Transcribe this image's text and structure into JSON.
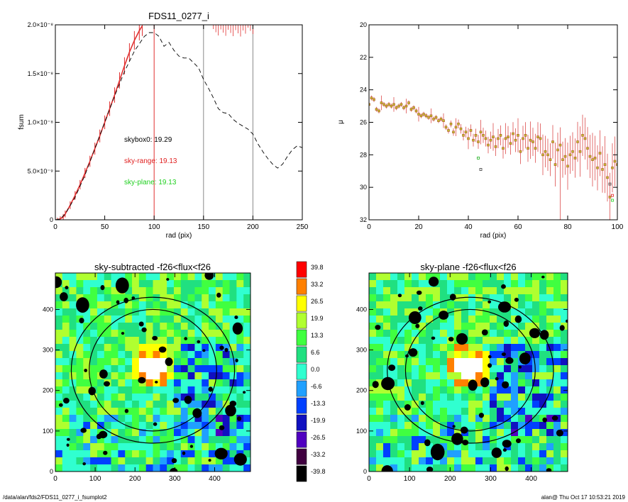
{
  "footer": {
    "path": "/data/alan/fds2/FDS11_0277_i_fsumplot2",
    "stamp": "alan@  Thu Oct 17 10:53:21 2019"
  },
  "chart_data": [
    {
      "type": "line",
      "title": "FDS11_0277_i",
      "xlabel": "rad (pix)",
      "ylabel": "fsum",
      "xlim": [
        0,
        250
      ],
      "ylim": [
        0,
        2e-08
      ],
      "xticks": [
        "0",
        "50",
        "100",
        "150",
        "200",
        "250"
      ],
      "yticks": [
        "0",
        "5.0×10⁻⁹",
        "1.0×10⁻⁸",
        "1.5×10⁻⁸",
        "2.0×10⁻⁸"
      ],
      "ytick_values": [
        0,
        5e-09,
        1e-08,
        1.5e-08,
        2e-08
      ],
      "vlines": [
        {
          "x": 100,
          "color": "#e03030"
        },
        {
          "x": 150,
          "color": "#888888"
        },
        {
          "x": 200,
          "color": "#888888"
        }
      ],
      "annotations": [
        {
          "text": "skybox0: 19.29",
          "color": "#000000"
        },
        {
          "text": "sky-range: 19.13",
          "color": "#e02020"
        },
        {
          "text": "sky-plane: 19.13",
          "color": "#20d020"
        }
      ],
      "series": [
        {
          "style": "red-errorbars",
          "x": [
            2,
            5,
            8,
            10,
            15,
            20,
            25,
            30,
            35,
            40,
            45,
            50,
            55,
            60,
            65,
            70,
            75,
            80,
            85,
            88
          ],
          "y": [
            0.0,
            1e-10,
            3e-10,
            6e-10,
            1.5e-09,
            2.5e-09,
            3.6e-09,
            4.8e-09,
            6e-09,
            7.3e-09,
            8.6e-09,
            1e-08,
            1.14e-08,
            1.28e-08,
            1.43e-08,
            1.58e-08,
            1.72e-08,
            1.84e-08,
            1.94e-08,
            1.99e-08
          ]
        },
        {
          "style": "dashed",
          "x": [
            0,
            5,
            10,
            20,
            30,
            40,
            50,
            60,
            70,
            80,
            90,
            95,
            100,
            105,
            110,
            115,
            120,
            125,
            130,
            135,
            140,
            145,
            150,
            155,
            160,
            165,
            170,
            175,
            180,
            185,
            190,
            195,
            200,
            205,
            210,
            215,
            220,
            225,
            230,
            235,
            240,
            245,
            250
          ],
          "y": [
            0.0,
            1e-10,
            6e-10,
            2.3e-09,
            4.6e-09,
            7.3e-09,
            1e-08,
            1.27e-08,
            1.52e-08,
            1.73e-08,
            1.88e-08,
            1.92e-08,
            1.92e-08,
            1.88e-08,
            1.78e-08,
            1.82e-08,
            1.74e-08,
            1.68e-08,
            1.66e-08,
            1.66e-08,
            1.61e-08,
            1.56e-08,
            1.44e-08,
            1.35e-08,
            1.25e-08,
            1.14e-08,
            1.1e-08,
            1.09e-08,
            1.03e-08,
            9.9e-09,
            9.6e-09,
            9.3e-09,
            8.8e-09,
            7.8e-09,
            7e-09,
            6.3e-09,
            5.7e-09,
            5.3e-09,
            5.7e-09,
            6.5e-09,
            7.2e-09,
            7.6e-09,
            7.4e-09
          ]
        }
      ]
    },
    {
      "type": "scatter",
      "title": "",
      "xlabel": "rad (pix)",
      "ylabel": "μ",
      "xlim": [
        0,
        100
      ],
      "ylim": [
        32,
        20
      ],
      "xticks": [
        "0",
        "20",
        "40",
        "60",
        "80",
        "100"
      ],
      "yticks": [
        "20",
        "22",
        "24",
        "26",
        "28",
        "30",
        "32"
      ],
      "points_x": [
        0,
        1,
        2,
        3,
        4,
        5,
        6,
        7,
        8,
        9,
        10,
        11,
        12,
        13,
        14,
        15,
        16,
        17,
        18,
        19,
        20,
        21,
        22,
        23,
        24,
        25,
        26,
        27,
        28,
        29,
        30,
        31,
        32,
        33,
        34,
        35,
        36,
        37,
        38,
        39,
        40,
        41,
        42,
        43,
        44,
        45,
        46,
        47,
        48,
        49,
        50,
        51,
        52,
        53,
        54,
        55,
        56,
        57,
        58,
        59,
        60,
        61,
        62,
        63,
        64,
        65,
        66,
        67,
        68,
        69,
        70,
        71,
        72,
        73,
        74,
        75,
        76,
        77,
        78,
        79,
        80,
        81,
        82,
        83,
        84,
        85,
        86,
        87,
        88,
        89,
        90,
        91,
        92,
        93,
        94,
        95,
        96,
        97,
        98,
        99,
        100
      ],
      "points_y": [
        24.9,
        24.5,
        24.6,
        25.2,
        25.3,
        24.8,
        24.9,
        25.0,
        24.9,
        25.0,
        24.9,
        25.1,
        25.0,
        24.9,
        25.1,
        25.0,
        24.8,
        25.2,
        25.1,
        25.3,
        25.5,
        25.6,
        25.5,
        25.6,
        25.7,
        25.6,
        25.8,
        25.7,
        25.9,
        25.8,
        25.9,
        26.3,
        26.5,
        26.1,
        26.6,
        26.3,
        26.1,
        26.4,
        26.8,
        26.6,
        27.0,
        26.5,
        27.1,
        26.8,
        27.2,
        26.6,
        26.8,
        27.0,
        27.4,
        27.1,
        26.9,
        27.5,
        27.0,
        26.8,
        27.6,
        27.0,
        26.9,
        27.3,
        26.7,
        27.1,
        26.8,
        27.8,
        27.0,
        26.8,
        27.6,
        27.1,
        27.2,
        27.6,
        26.9,
        27.0,
        28.0,
        27.8,
        28.0,
        28.3,
        27.2,
        28.6,
        27.7,
        27.4,
        28.3,
        28.1,
        28.7,
        28.0,
        27.8,
        28.2,
        27.2,
        27.8,
        26.8,
        27.0,
        27.6,
        28.1,
        28.3,
        28.2,
        28.8,
        27.9,
        28.9,
        28.6,
        29.4,
        30.6,
        28.8,
        28.4,
        28.6
      ],
      "error_bars": true,
      "extra_markers": [
        {
          "x": 44,
          "y": 28.2,
          "color": "#20b020"
        },
        {
          "x": 45,
          "y": 28.9,
          "color": "#404040"
        },
        {
          "x": 97,
          "y": 29.8,
          "color": "#404040"
        },
        {
          "x": 98,
          "y": 30.5,
          "color": "#e02020"
        },
        {
          "x": 98,
          "y": 30.8,
          "color": "#20d020"
        }
      ]
    },
    {
      "type": "heatmap",
      "title": "sky-subtracted -f26<flux<f26",
      "xlabel": "",
      "ylabel": "",
      "xlim": [
        0,
        490
      ],
      "ylim": [
        0,
        490
      ],
      "xticks": [
        "0",
        "100",
        "200",
        "300",
        "400"
      ],
      "yticks": [
        "0",
        "100",
        "200",
        "300",
        "400"
      ],
      "ellipses": [
        {
          "cx": 245,
          "cy": 250,
          "rx": 205,
          "ry": 180
        },
        {
          "cx": 245,
          "cy": 250,
          "rx": 160,
          "ry": 150
        }
      ]
    },
    {
      "type": "heatmap",
      "title": "sky-plane -f26<flux<f26",
      "xlabel": "",
      "ylabel": "",
      "xlim": [
        0,
        490
      ],
      "ylim": [
        0,
        490
      ],
      "xticks": [
        "0",
        "100",
        "200",
        "300",
        "400"
      ],
      "yticks": [
        "0",
        "100",
        "200",
        "300",
        "400"
      ],
      "ellipses": [
        {
          "cx": 250,
          "cy": 250,
          "rx": 205,
          "ry": 180
        },
        {
          "cx": 250,
          "cy": 250,
          "rx": 160,
          "ry": 150
        }
      ]
    }
  ],
  "colorbar": {
    "labels": [
      "39.8",
      "33.2",
      "26.5",
      "19.9",
      "13.3",
      "6.6",
      "0.0",
      "-6.6",
      "-13.3",
      "-19.9",
      "-26.5",
      "-33.2",
      "-39.8"
    ],
    "colors": [
      "#ff0000",
      "#ff8000",
      "#ffff00",
      "#b0ff30",
      "#40ff40",
      "#20e080",
      "#30ffd0",
      "#20a0ff",
      "#0040ff",
      "#1010c0",
      "#5000c0",
      "#400040",
      "#000000"
    ]
  }
}
